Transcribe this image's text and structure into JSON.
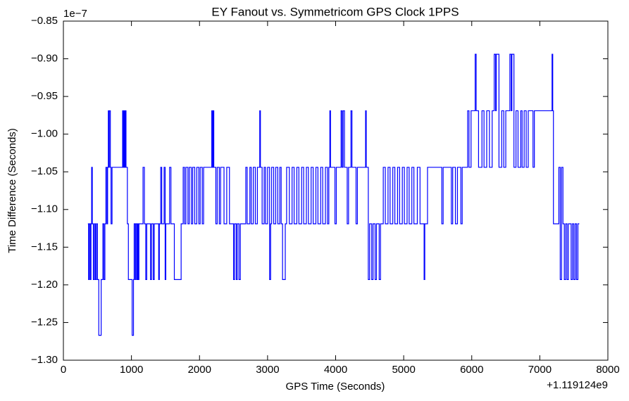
{
  "chart_data": {
    "type": "line",
    "title": "EY Fanout vs. Symmetricom GPS Clock 1PPS",
    "x_label": "GPS Time (Seconds)",
    "y_label": "Time Difference (Seconds)",
    "x_offset_label": "+1.119124e9",
    "y_scale_label": "1e−7",
    "xlim": [
      0,
      8000
    ],
    "xticks": [
      0,
      1000,
      2000,
      3000,
      4000,
      5000,
      6000,
      7000,
      8000
    ],
    "ylim": [
      -1.3,
      -0.85
    ],
    "yticks": [
      {
        "value": -1.3,
        "label": "−1.30"
      },
      {
        "value": -1.25,
        "label": "−1.25"
      },
      {
        "value": -1.2,
        "label": "−1.20"
      },
      {
        "value": -1.15,
        "label": "−1.15"
      },
      {
        "value": -1.1,
        "label": "−1.10"
      },
      {
        "value": -1.05,
        "label": "−1.05"
      },
      {
        "value": -1.0,
        "label": "−1.00"
      },
      {
        "value": -0.95,
        "label": "−0.95"
      },
      {
        "value": -0.9,
        "label": "−0.90"
      },
      {
        "value": -0.85,
        "label": "−0.85"
      }
    ],
    "grid": false,
    "step": "post",
    "series": [
      {
        "color": "#0000ff",
        "x": [
          360,
          370,
          380,
          395,
          405,
          415,
          425,
          440,
          455,
          470,
          485,
          500,
          520,
          555,
          580,
          595,
          610,
          625,
          640,
          650,
          660,
          668,
          675,
          690,
          700,
          715,
          870,
          880,
          890,
          900,
          910,
          920,
          940,
          955,
          1010,
          1030,
          1040,
          1055,
          1065,
          1080,
          1090,
          1100,
          1110,
          1170,
          1190,
          1210,
          1225,
          1280,
          1295,
          1320,
          1335,
          1400,
          1410,
          1430,
          1445,
          1480,
          1495,
          1505,
          1560,
          1580,
          1630,
          1730,
          1760,
          1780,
          1800,
          1830,
          1850,
          1880,
          1900,
          1930,
          1960,
          1990,
          2010,
          2040,
          2060,
          2180,
          2190,
          2200,
          2210,
          2240,
          2260,
          2290,
          2310,
          2360,
          2400,
          2440,
          2500,
          2515,
          2540,
          2555,
          2580,
          2600,
          2680,
          2700,
          2740,
          2760,
          2790,
          2820,
          2850,
          2885,
          2895,
          2920,
          2950,
          2970,
          3000,
          3030,
          3045,
          3060,
          3090,
          3120,
          3150,
          3180,
          3200,
          3220,
          3260,
          3280,
          3320,
          3360,
          3390,
          3430,
          3460,
          3500,
          3530,
          3570,
          3600,
          3640,
          3670,
          3710,
          3740,
          3780,
          3810,
          3850,
          3880,
          3900,
          3915,
          3925,
          3990,
          4010,
          4080,
          4095,
          4110,
          4130,
          4170,
          4190,
          4225,
          4240,
          4300,
          4320,
          4440,
          4450,
          4480,
          4500,
          4530,
          4550,
          4580,
          4600,
          4640,
          4660,
          4700,
          4730,
          4770,
          4800,
          4840,
          4870,
          4910,
          4940,
          4980,
          5010,
          5050,
          5080,
          5120,
          5150,
          5200,
          5240,
          5300,
          5310,
          5350,
          5560,
          5580,
          5700,
          5720,
          5760,
          5790,
          5840,
          5860,
          5940,
          5960,
          5990,
          6050,
          6065,
          6100,
          6150,
          6180,
          6220,
          6260,
          6300,
          6330,
          6350,
          6360,
          6400,
          6440,
          6470,
          6500,
          6560,
          6580,
          6590,
          6620,
          6650,
          6680,
          6720,
          6740,
          6770,
          6800,
          6830,
          6900,
          6920,
          7180,
          7190,
          7200,
          7280,
          7300,
          7320,
          7340,
          7360,
          7380,
          7400,
          7420,
          7460,
          7480,
          7500,
          7520,
          7540,
          7560,
          7580
        ],
        "values": [
          -1.119,
          -1.193,
          -1.119,
          -1.193,
          -1.119,
          -1.044,
          -1.119,
          -1.193,
          -1.119,
          -1.193,
          -1.119,
          -1.193,
          -1.267,
          -1.193,
          -1.119,
          -1.193,
          -1.119,
          -1.044,
          -1.119,
          -1.044,
          -0.969,
          -1.044,
          -0.969,
          -1.044,
          -1.119,
          -1.044,
          -0.969,
          -1.044,
          -0.969,
          -1.044,
          -0.969,
          -1.044,
          -1.119,
          -1.193,
          -1.267,
          -1.193,
          -1.119,
          -1.193,
          -1.119,
          -1.193,
          -1.119,
          -1.193,
          -1.119,
          -1.044,
          -1.119,
          -1.193,
          -1.119,
          -1.193,
          -1.119,
          -1.193,
          -1.119,
          -1.193,
          -1.119,
          -1.044,
          -1.119,
          -1.044,
          -1.193,
          -1.119,
          -1.044,
          -1.119,
          -1.193,
          -1.119,
          -1.044,
          -1.119,
          -1.044,
          -1.119,
          -1.044,
          -1.119,
          -1.044,
          -1.119,
          -1.044,
          -1.119,
          -1.044,
          -1.119,
          -1.044,
          -0.969,
          -1.044,
          -0.969,
          -1.044,
          -1.119,
          -1.044,
          -1.119,
          -1.044,
          -1.119,
          -1.044,
          -1.119,
          -1.193,
          -1.119,
          -1.193,
          -1.119,
          -1.193,
          -1.119,
          -1.044,
          -1.119,
          -1.044,
          -1.119,
          -1.044,
          -1.119,
          -1.044,
          -0.969,
          -1.044,
          -1.119,
          -1.044,
          -1.119,
          -1.044,
          -1.193,
          -1.119,
          -1.044,
          -1.119,
          -1.044,
          -1.119,
          -1.044,
          -1.119,
          -1.193,
          -1.119,
          -1.044,
          -1.119,
          -1.044,
          -1.119,
          -1.044,
          -1.119,
          -1.044,
          -1.119,
          -1.044,
          -1.119,
          -1.044,
          -1.119,
          -1.044,
          -1.119,
          -1.044,
          -1.119,
          -1.044,
          -1.119,
          -1.044,
          -0.969,
          -1.044,
          -1.119,
          -1.044,
          -0.969,
          -1.044,
          -0.969,
          -1.044,
          -1.119,
          -1.044,
          -0.969,
          -1.044,
          -1.119,
          -1.044,
          -0.969,
          -1.044,
          -1.193,
          -1.119,
          -1.193,
          -1.119,
          -1.193,
          -1.119,
          -1.193,
          -1.119,
          -1.044,
          -1.119,
          -1.044,
          -1.119,
          -1.044,
          -1.119,
          -1.044,
          -1.119,
          -1.044,
          -1.119,
          -1.044,
          -1.119,
          -1.044,
          -1.119,
          -1.044,
          -1.119,
          -1.193,
          -1.119,
          -1.044,
          -1.119,
          -1.044,
          -1.119,
          -1.044,
          -1.119,
          -1.044,
          -1.119,
          -1.044,
          -0.969,
          -1.044,
          -0.969,
          -0.894,
          -0.969,
          -1.044,
          -0.969,
          -1.044,
          -0.969,
          -1.044,
          -0.969,
          -0.894,
          -0.969,
          -0.894,
          -1.044,
          -0.969,
          -1.044,
          -0.969,
          -0.894,
          -0.969,
          -0.894,
          -1.044,
          -0.969,
          -1.044,
          -0.969,
          -1.044,
          -0.969,
          -1.044,
          -0.969,
          -1.044,
          -0.969,
          -0.894,
          -0.969,
          -1.119,
          -1.044,
          -1.193,
          -1.044,
          -1.119,
          -1.193,
          -1.119,
          -1.193,
          -1.119,
          -1.193,
          -1.119,
          -1.193,
          -1.119,
          -1.193,
          -1.119,
          -1.119
        ]
      }
    ]
  }
}
